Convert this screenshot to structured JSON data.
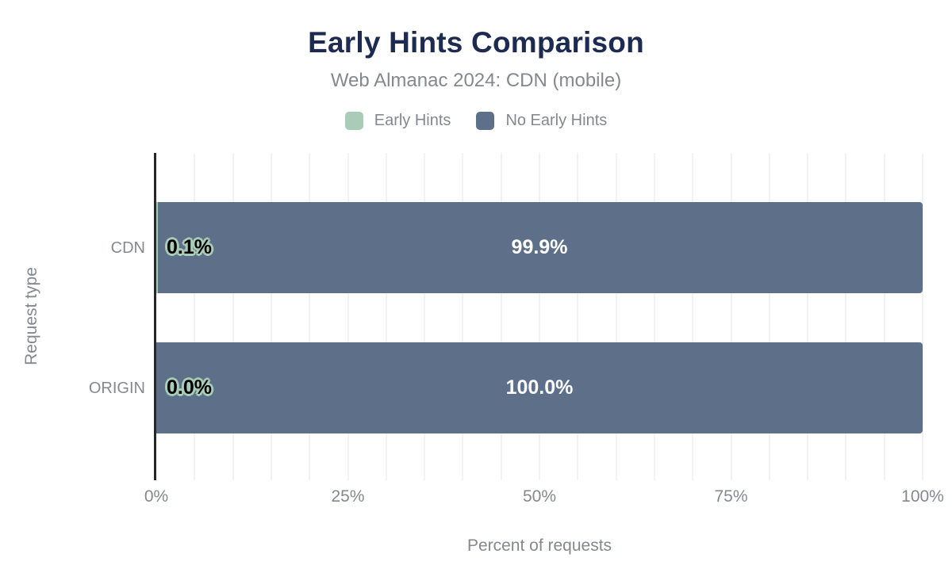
{
  "chart_data": {
    "type": "bar",
    "orientation": "horizontal",
    "stacked": true,
    "title": "Early Hints Comparison",
    "subtitle": "Web Almanac 2024: CDN (mobile)",
    "xlabel": "Percent of requests",
    "ylabel": "Request type",
    "categories": [
      "CDN",
      "ORIGIN"
    ],
    "series": [
      {
        "name": "Early Hints",
        "color": "#a9ccb8",
        "values": [
          0.1,
          0.0
        ],
        "labels": [
          "0.1%",
          "0.0%"
        ]
      },
      {
        "name": "No Early Hints",
        "color": "#5e7089",
        "values": [
          99.9,
          100.0
        ],
        "labels": [
          "99.9%",
          "100.0%"
        ]
      }
    ],
    "x_ticks": [
      "0%",
      "25%",
      "50%",
      "75%",
      "100%"
    ],
    "xlim": [
      0,
      100
    ],
    "grid": "minor vertical lines every 5%",
    "legend_position": "top center"
  },
  "colors": {
    "title": "#1c2b4f",
    "text_gray": "#84898f",
    "early_hints": "#a9ccb8",
    "no_early_hints": "#5e7089",
    "axis_line": "#25272a",
    "gridline": "#f1f2f3",
    "value_on_dark": "#ffffff",
    "value_outline": "#a9ccb8"
  }
}
